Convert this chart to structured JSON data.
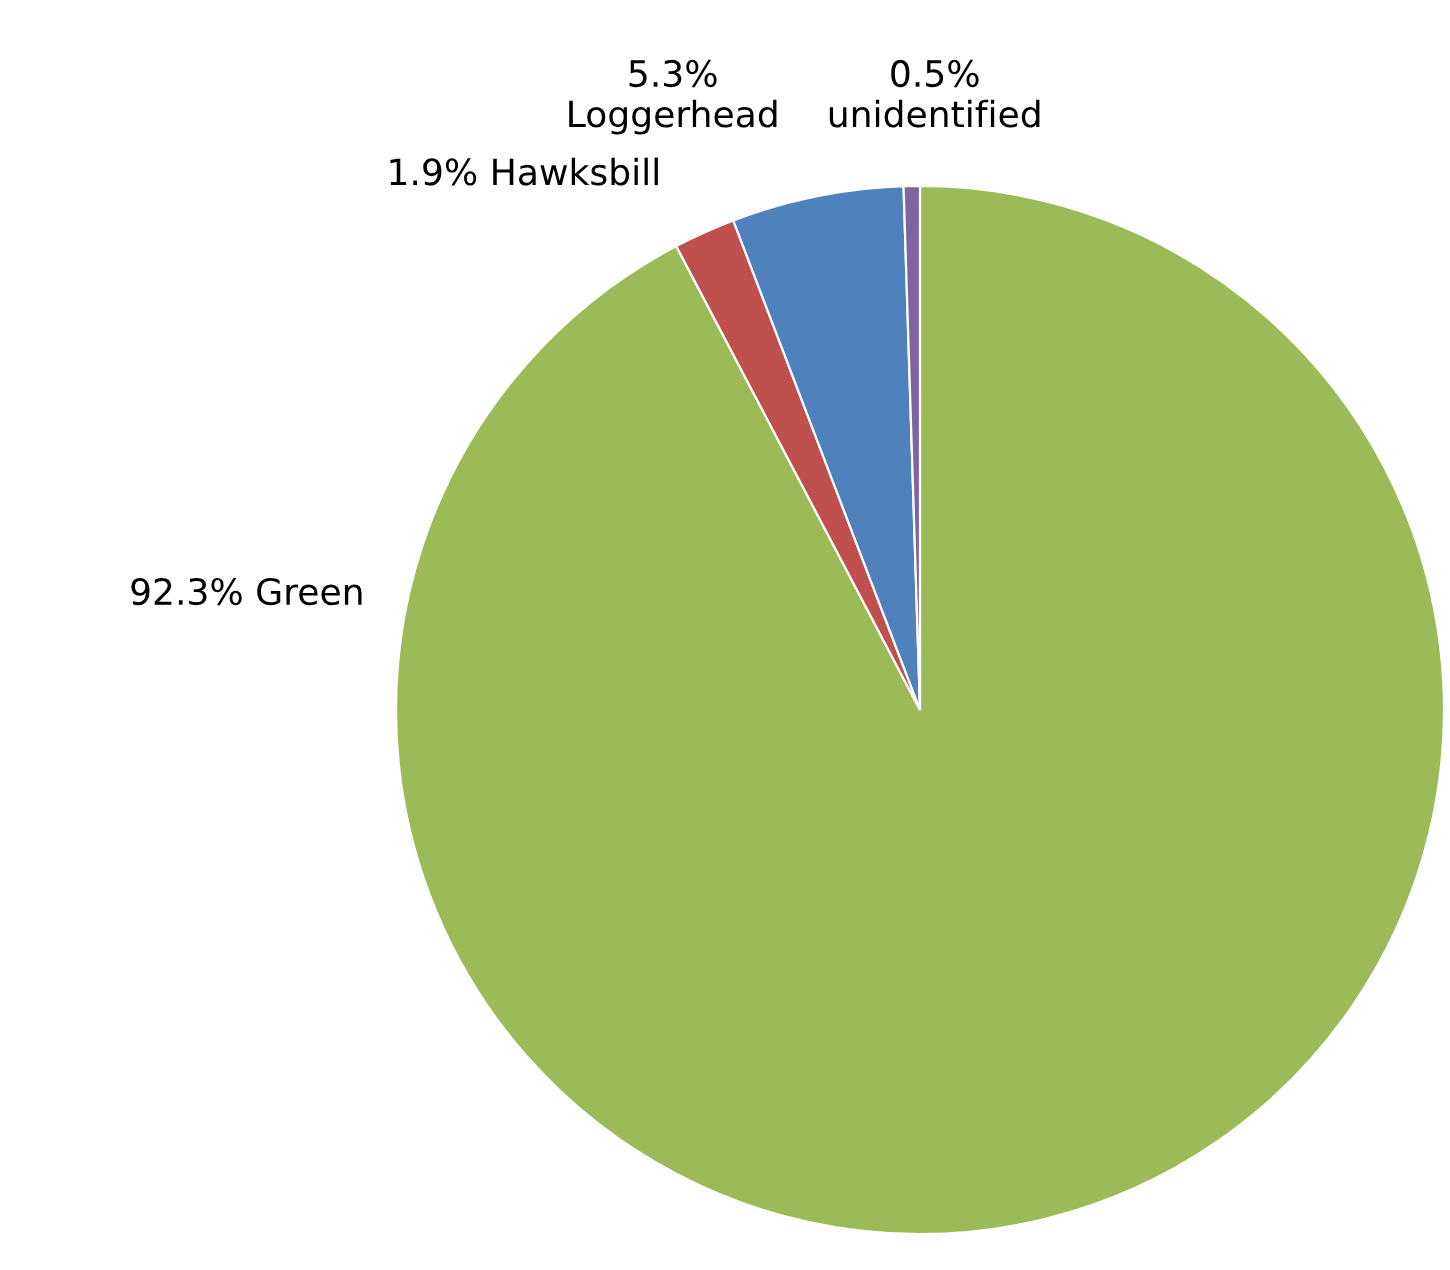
{
  "chart_data": {
    "type": "pie",
    "categories": [
      "Green",
      "Hawksbill",
      "Loggerhead",
      "unidentified"
    ],
    "values": [
      92.3,
      1.9,
      5.3,
      0.5
    ],
    "value_labels": [
      "92.3%",
      "1.9%",
      "5.3%",
      "0.5%"
    ],
    "colors": [
      "#9bbb59",
      "#c0504d",
      "#4f81bd",
      "#8064a2"
    ]
  }
}
